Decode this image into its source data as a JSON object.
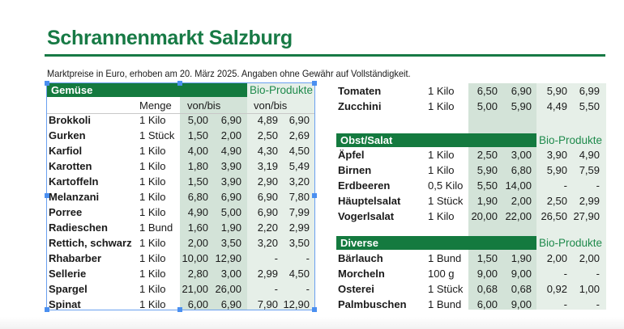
{
  "title": "Schrannenmarkt Salzburg",
  "subtitle": "Marktpreise in Euro, erhoben am 20. März 2025. Angaben ohne Gewähr auf Vollständigkeit.",
  "colors": {
    "brand_green": "#177a45",
    "header_green": "#147a3f",
    "shade_dark": "#d3e3d8",
    "shade_light": "#e6efe8",
    "selection": "#4a8ff0"
  },
  "bio_label": "Bio-Produkte",
  "columns": {
    "menge": "Menge",
    "vonbis": "von/bis",
    "bio_vonbis": "von/bis"
  },
  "sections": [
    {
      "title": "Gemüse",
      "rows": [
        [
          "Brokkoli",
          "1 Kilo",
          "5,00",
          "6,90",
          "4,89",
          "6,90"
        ],
        [
          "Gurken",
          "1 Stück",
          "1,50",
          "2,00",
          "2,50",
          "2,69"
        ],
        [
          "Karfiol",
          "1 Kilo",
          "4,00",
          "4,90",
          "4,30",
          "4,50"
        ],
        [
          "Karotten",
          "1 Kilo",
          "1,80",
          "3,90",
          "3,19",
          "5,49"
        ],
        [
          "Kartoffeln",
          "1 Kilo",
          "1,50",
          "3,90",
          "2,90",
          "3,20"
        ],
        [
          "Melanzani",
          "1 Kilo",
          "6,80",
          "6,90",
          "6,90",
          "7,80"
        ],
        [
          "Porree",
          "1 Kilo",
          "4,90",
          "5,00",
          "6,90",
          "7,99"
        ],
        [
          "Radieschen",
          "1 Bund",
          "1,60",
          "1,90",
          "2,20",
          "2,99"
        ],
        [
          "Rettich, schwarz",
          "1 Kilo",
          "2,00",
          "3,50",
          "3,20",
          "3,50"
        ],
        [
          "Rhabarber",
          "1 Kilo",
          "10,00",
          "12,90",
          "-",
          "-"
        ],
        [
          "Sellerie",
          "1 Kilo",
          "2,80",
          "3,00",
          "2,99",
          "4,50"
        ],
        [
          "Spargel",
          "1 Kilo",
          "21,00",
          "26,00",
          "-",
          "-"
        ],
        [
          "Spinat",
          "1 Kilo",
          "6,00",
          "6,90",
          "7,90",
          "12,90"
        ],
        [
          "Tomaten",
          "1 Kilo",
          "6,50",
          "6,90",
          "5,90",
          "6,99"
        ],
        [
          "Zucchini",
          "1 Kilo",
          "5,00",
          "5,90",
          "4,49",
          "5,50"
        ]
      ]
    },
    {
      "title": "Obst/Salat",
      "rows": [
        [
          "Äpfel",
          "1 Kilo",
          "2,50",
          "3,00",
          "3,90",
          "4,90"
        ],
        [
          "Birnen",
          "1 Kilo",
          "5,90",
          "6,80",
          "5,90",
          "7,59"
        ],
        [
          "Erdbeeren",
          "0,5 Kilo",
          "5,50",
          "14,00",
          "-",
          "-"
        ],
        [
          "Häuptelsalat",
          "1 Stück",
          "1,90",
          "2,00",
          "2,50",
          "2,99"
        ],
        [
          "Vogerlsalat",
          "1 Kilo",
          "20,00",
          "22,00",
          "26,50",
          "27,90"
        ]
      ]
    },
    {
      "title": "Diverse",
      "rows": [
        [
          "Bärlauch",
          "1 Bund",
          "1,50",
          "1,90",
          "2,00",
          "2,00"
        ],
        [
          "Morcheln",
          "100 g",
          "9,00",
          "9,00",
          "-",
          "-"
        ],
        [
          "Osterei",
          "1 Stück",
          "0,68",
          "0,68",
          "0,92",
          "1,00"
        ],
        [
          "Palmbuschen",
          "1 Bund",
          "6,00",
          "9,00",
          "-",
          "-"
        ]
      ]
    }
  ]
}
